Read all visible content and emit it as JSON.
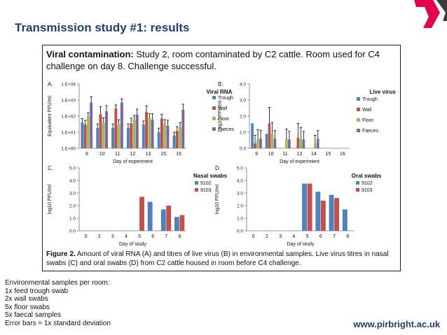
{
  "slide": {
    "title": "Transmission study #1: results",
    "website": "www.pirbright.ac.uk"
  },
  "figure": {
    "heading_bold": "Viral contamination:",
    "heading_rest": " Study 2, room contaminated by C2 cattle. Room used for C4 challenge on day 8. Challenge successful.",
    "caption_bold": "Figure 2.",
    "caption_rest": " Amount of viral RNA (A) and titres of live virus (B) in environmental samples. Live virus titres in nasal swabs (C) and oral swabs (D) from C2 cattle housed in room before C4 challenge."
  },
  "notes": [
    "Environmental samples per room:",
    "1x feed trough swab",
    "2x wall swabs",
    "5x floor swabs",
    "5x faecal samples",
    "Error bars = 1x standard deviation"
  ],
  "colors": {
    "title": "#1f3f6e",
    "trough": "#4f81bd",
    "wall": "#c0504d",
    "floor": "#9bbb59",
    "faeces": "#8064a2",
    "deco": "#e5004f"
  },
  "chart_data": [
    {
      "panel": "A.",
      "type": "bar",
      "title": "Viral RNA",
      "scale": "log",
      "xlabel": "Day of experiment",
      "ylabel": "Equivalent PFU/ml",
      "categories": [
        "9",
        "10",
        "11",
        "12",
        "13",
        "15",
        "16"
      ],
      "ylim": [
        1,
        10000
      ],
      "yticks": [
        1,
        10,
        100,
        1000,
        10000
      ],
      "yticklabels": [
        "1.E+00",
        "1.E+01",
        "1.E+02",
        "1.E+03",
        "1.E+04"
      ],
      "series": [
        {
          "name": "Trough",
          "color": "#4f81bd",
          "values": [
            40,
            18,
            18,
            18,
            30,
            10,
            6
          ],
          "errors": [
            30,
            15,
            15,
            15,
            20,
            8,
            4
          ]
        },
        {
          "name": "Wall",
          "color": "#c0504d",
          "values": [
            30,
            130,
            300,
            35,
            180,
            70,
            12
          ],
          "errors": [
            25,
            250,
            200,
            40,
            250,
            60,
            10
          ]
        },
        {
          "name": "Floor",
          "color": "#9bbb59",
          "values": [
            100,
            40,
            30,
            60,
            80,
            30,
            20
          ],
          "errors": [
            60,
            40,
            30,
            50,
            60,
            30,
            20
          ]
        },
        {
          "name": "Faeces",
          "color": "#8064a2",
          "values": [
            700,
            200,
            700,
            120,
            60,
            25,
            250
          ],
          "errors": [
            900,
            250,
            500,
            150,
            80,
            30,
            300
          ]
        }
      ]
    },
    {
      "panel": "B.",
      "type": "bar",
      "title": "Live virus",
      "scale": "linear",
      "xlabel": "Day of experiment",
      "ylabel": "Log10 PFU/ml",
      "categories": [
        "9",
        "10",
        "11",
        "12",
        "14",
        "15",
        "16"
      ],
      "ylim": [
        0,
        4
      ],
      "yticks": [
        0,
        1,
        2,
        3,
        4
      ],
      "yticklabels": [
        "0.0",
        "1.0",
        "2.0",
        "3.0",
        "4.0"
      ],
      "series": [
        {
          "name": "Trough",
          "color": "#4f81bd",
          "values": [
            1.55,
            0.9,
            0,
            0,
            0,
            0,
            0
          ],
          "errors": [
            0,
            0,
            0,
            0,
            0,
            0,
            0
          ]
        },
        {
          "name": "Wall",
          "color": "#c0504d",
          "values": [
            0.3,
            1.55,
            0,
            0.65,
            0,
            0,
            0
          ],
          "errors": [
            0.5,
            1.0,
            0,
            0.9,
            0,
            0,
            0
          ]
        },
        {
          "name": "Floor",
          "color": "#9bbb59",
          "values": [
            0.55,
            0.9,
            0.6,
            0.6,
            0.3,
            0,
            0
          ],
          "errors": [
            0.6,
            0.7,
            0.6,
            0.7,
            0.5,
            0,
            0
          ]
        },
        {
          "name": "Faeces",
          "color": "#8064a2",
          "values": [
            0.6,
            0.6,
            0.55,
            0.55,
            0.6,
            0,
            0
          ],
          "errors": [
            0.5,
            0.5,
            0.5,
            0.5,
            0.5,
            0,
            0
          ]
        }
      ]
    },
    {
      "panel": "C.",
      "type": "bar",
      "title": "Nasal swabs",
      "scale": "linear",
      "xlabel": "Day of study",
      "ylabel": "log10 PFU/ml",
      "categories": [
        "0",
        "2",
        "3",
        "4",
        "5",
        "6",
        "7",
        "8"
      ],
      "ylim": [
        0,
        5
      ],
      "yticks": [
        0,
        1,
        2,
        3,
        4,
        5
      ],
      "yticklabels": [
        "0.0",
        "1.0",
        "2.0",
        "3.0",
        "4.0",
        "5.0"
      ],
      "series": [
        {
          "name": "9102",
          "color": "#4f81bd",
          "values": [
            0,
            0,
            0,
            0,
            0,
            2.3,
            1.7,
            1.1
          ]
        },
        {
          "name": "9103",
          "color": "#c0504d",
          "values": [
            0,
            0,
            0,
            0,
            2.7,
            0,
            2.0,
            1.25
          ]
        }
      ]
    },
    {
      "panel": "D.",
      "type": "bar",
      "title": "Oral swabs",
      "scale": "linear",
      "xlabel": "Day of study",
      "ylabel": "log10 PFU/ml",
      "categories": [
        "0",
        "2",
        "3",
        "4",
        "5",
        "6",
        "7",
        "8"
      ],
      "ylim": [
        0,
        5
      ],
      "yticks": [
        0,
        1,
        2,
        3,
        4,
        5
      ],
      "yticklabels": [
        "0.0",
        "1.0",
        "2.0",
        "3.0",
        "4.0",
        "5.0"
      ],
      "series": [
        {
          "name": "9102",
          "color": "#4f81bd",
          "values": [
            0,
            0,
            0,
            0,
            3.75,
            3.1,
            2.85,
            1.7
          ]
        },
        {
          "name": "9103",
          "color": "#c0504d",
          "values": [
            0,
            0,
            0,
            0,
            3.75,
            2.4,
            2.6,
            0
          ]
        }
      ]
    }
  ]
}
